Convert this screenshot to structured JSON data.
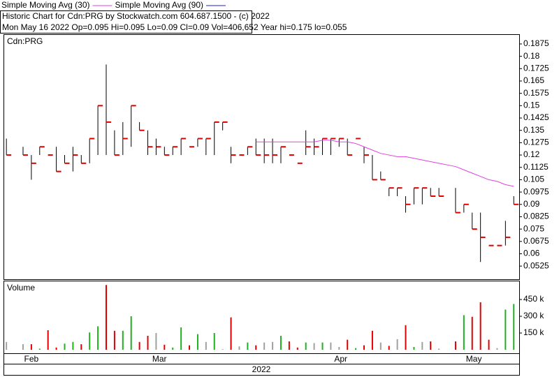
{
  "chart_data": {
    "type": "hlc",
    "legend": [
      {
        "name": "Simple Moving Avg (30)",
        "color": "#e040e0"
      },
      {
        "name": "Simple Moving Avg (90)",
        "color": "#2020c0"
      }
    ],
    "title": "Historic Chart for Cdn:PRG by Stockwatch.com 604.687.1500 - (c) 2022",
    "subtitle": "Mon May 16 2022  Op=0.095  Hi=0.095  Lo=0.09  Cl=0.09  Vol=406,652  Year hi=0.175  lo=0.055",
    "symbol": "Cdn:PRG",
    "categories": [
      null,
      null,
      null,
      null,
      null,
      null,
      null,
      null,
      null,
      null,
      null,
      null,
      null,
      null,
      null,
      null,
      null,
      null,
      null,
      null,
      null,
      null,
      null,
      null,
      null,
      null,
      null,
      null,
      null,
      null,
      null,
      null,
      null,
      null,
      null,
      null,
      null,
      null,
      null,
      null,
      null,
      null,
      null,
      null,
      null,
      null,
      null,
      null,
      null,
      null,
      null,
      null,
      null,
      null,
      null,
      null,
      null,
      null,
      null,
      null,
      null,
      null
    ],
    "high": [
      0.13,
      null,
      0.125,
      0.12,
      0.125,
      0.12,
      0.125,
      0.12,
      0.125,
      0.12,
      0.13,
      0.15,
      0.175,
      0.135,
      0.14,
      0.15,
      0.14,
      0.135,
      0.13,
      0.125,
      0.125,
      0.13,
      0.125,
      0.13,
      0.13,
      0.14,
      0.14,
      0.125,
      0.12,
      0.125,
      0.13,
      0.13,
      0.13,
      0.125,
      0.12,
      0.115,
      0.135,
      0.13,
      0.13,
      0.13,
      0.13,
      0.13,
      0.13,
      0.125,
      0.12,
      0.11,
      0.1,
      0.1,
      0.095,
      0.1,
      0.1,
      0.1,
      0.1,
      null,
      0.1,
      0.09,
      0.085,
      0.085,
      0.065,
      0.065,
      0.08,
      0.095
    ],
    "low": [
      0.12,
      null,
      0.12,
      0.105,
      0.12,
      0.12,
      0.11,
      0.115,
      0.11,
      0.115,
      0.115,
      0.12,
      0.12,
      0.12,
      0.12,
      0.125,
      0.135,
      0.12,
      0.12,
      0.12,
      0.12,
      0.12,
      0.125,
      0.125,
      0.12,
      0.12,
      0.135,
      0.115,
      0.12,
      0.12,
      0.12,
      0.115,
      0.115,
      0.115,
      0.12,
      0.115,
      0.12,
      0.12,
      0.12,
      0.12,
      0.125,
      0.12,
      0.13,
      0.115,
      0.105,
      0.105,
      0.095,
      0.095,
      0.085,
      0.09,
      0.09,
      0.095,
      0.095,
      null,
      0.085,
      0.085,
      0.075,
      0.055,
      0.065,
      0.065,
      0.065,
      0.09
    ],
    "close": [
      0.12,
      null,
      0.12,
      0.115,
      0.125,
      0.12,
      0.11,
      0.115,
      0.12,
      0.115,
      0.13,
      0.15,
      0.14,
      0.12,
      0.13,
      0.15,
      0.135,
      0.125,
      0.125,
      0.12,
      0.125,
      0.13,
      0.125,
      0.13,
      0.13,
      0.14,
      0.14,
      0.12,
      0.12,
      0.125,
      0.12,
      0.12,
      0.12,
      0.125,
      0.12,
      0.115,
      0.125,
      0.125,
      0.13,
      0.13,
      0.13,
      0.12,
      0.13,
      0.12,
      0.105,
      0.105,
      0.1,
      0.1,
      0.09,
      0.1,
      0.1,
      0.095,
      0.095,
      null,
      0.085,
      0.09,
      0.075,
      0.07,
      0.065,
      0.065,
      0.07,
      0.09
    ],
    "bar_color": "#000000",
    "close_color": "#e00000",
    "series": [
      {
        "name": "Simple Moving Avg (30)",
        "color": "#e040e0",
        "values": [
          null,
          null,
          null,
          null,
          null,
          null,
          null,
          null,
          null,
          null,
          null,
          null,
          null,
          null,
          null,
          null,
          null,
          null,
          null,
          null,
          null,
          null,
          null,
          null,
          null,
          null,
          null,
          null,
          null,
          null,
          0.128,
          0.128,
          0.128,
          0.128,
          0.128,
          0.128,
          0.128,
          0.128,
          0.129,
          0.129,
          0.128,
          0.128,
          0.127,
          0.125,
          0.123,
          0.121,
          0.12,
          0.119,
          0.119,
          0.118,
          0.117,
          0.116,
          0.115,
          0.114,
          0.113,
          0.111,
          0.109,
          0.107,
          0.105,
          0.104,
          0.102,
          0.101
        ]
      }
    ],
    "ylim": [
      0.0445,
      0.193
    ],
    "yticks": [
      0.0525,
      0.06,
      0.0675,
      0.075,
      0.0825,
      0.09,
      0.0975,
      0.105,
      0.1125,
      0.12,
      0.1275,
      0.135,
      0.1425,
      0.15,
      0.1575,
      0.165,
      0.1725,
      0.18,
      0.1875
    ],
    "xticks": [
      {
        "value": 3,
        "label": "Feb"
      },
      {
        "value": 18.4,
        "label": "Mar"
      },
      {
        "value": 40.2,
        "label": "Apr"
      },
      {
        "value": 56.2,
        "label": "May"
      }
    ],
    "year": "2022",
    "volume": {
      "label": "Volume",
      "values": [
        70000,
        null,
        50000,
        50000,
        10000,
        175000,
        20000,
        55000,
        70000,
        50000,
        155000,
        210000,
        580000,
        170000,
        170000,
        300000,
        70000,
        125000,
        150000,
        45000,
        20000,
        200000,
        40000,
        140000,
        70000,
        150000,
        5000,
        290000,
        30000,
        65000,
        40000,
        65000,
        70000,
        125000,
        75000,
        20000,
        65000,
        60000,
        65000,
        65000,
        25000,
        90000,
        15000,
        40000,
        170000,
        65000,
        35000,
        95000,
        220000,
        25000,
        70000,
        75000,
        10000,
        null,
        75000,
        310000,
        295000,
        425000,
        90000,
        15000,
        360000,
        410000
      ],
      "up_color": "#20b020",
      "down_color": "#e00000",
      "flat_color": "#a0a0a0",
      "ylim": [
        0,
        600000
      ],
      "yticks": [
        {
          "value": 150000,
          "label": "150 k"
        },
        {
          "value": 300000,
          "label": "300 k"
        },
        {
          "value": 450000,
          "label": "450 k"
        }
      ]
    }
  }
}
